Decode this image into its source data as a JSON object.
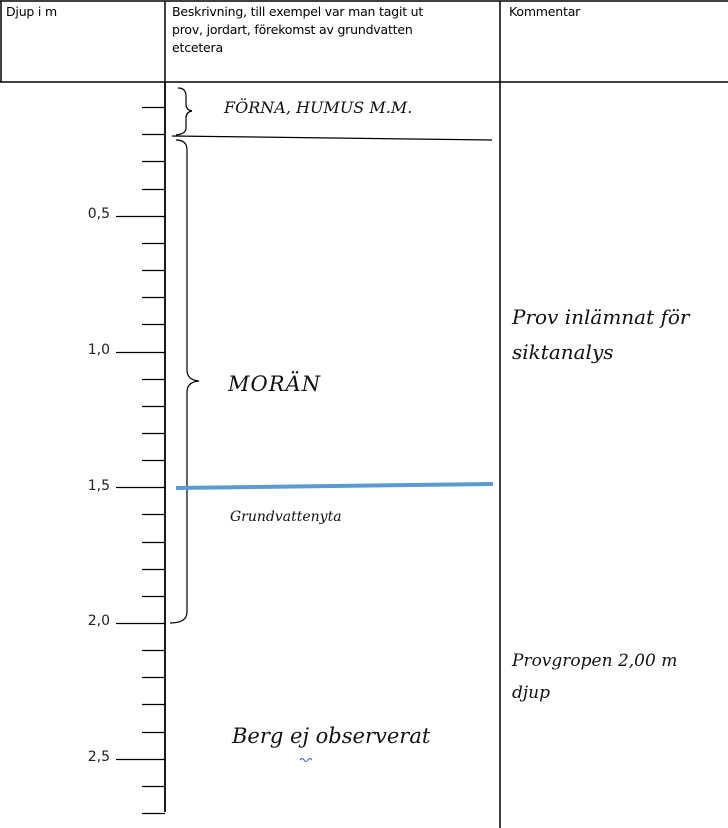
{
  "header": {
    "col1": "Djup i m",
    "col2_line1": "Beskrivning, till exempel var man tagit ut",
    "col2_line2": "prov, jordart, förekomst av grundvatten",
    "col2_line3": "etcetera",
    "col3": "Kommentar"
  },
  "depth_labels": [
    "0,5",
    "1,0",
    "1,5",
    "2,0",
    "2,5"
  ],
  "annotations": {
    "forna": "FÖRNA, HUMUS M.M.",
    "moran": "MORÄN",
    "grundvatten": "Grundvattenyta",
    "berg_prefix": "Berg ",
    "berg_ej": "ej",
    "berg_suffix": " observerat"
  },
  "comments": {
    "prov_line1": "Prov inlämnat för",
    "prov_line2": "siktanalys",
    "provgrop_line1": "Provgropen 2,00 m",
    "provgrop_line2": "djup"
  },
  "colors": {
    "groundwater_line": "#5b9bd5",
    "spell_underline": "#3355cc"
  }
}
